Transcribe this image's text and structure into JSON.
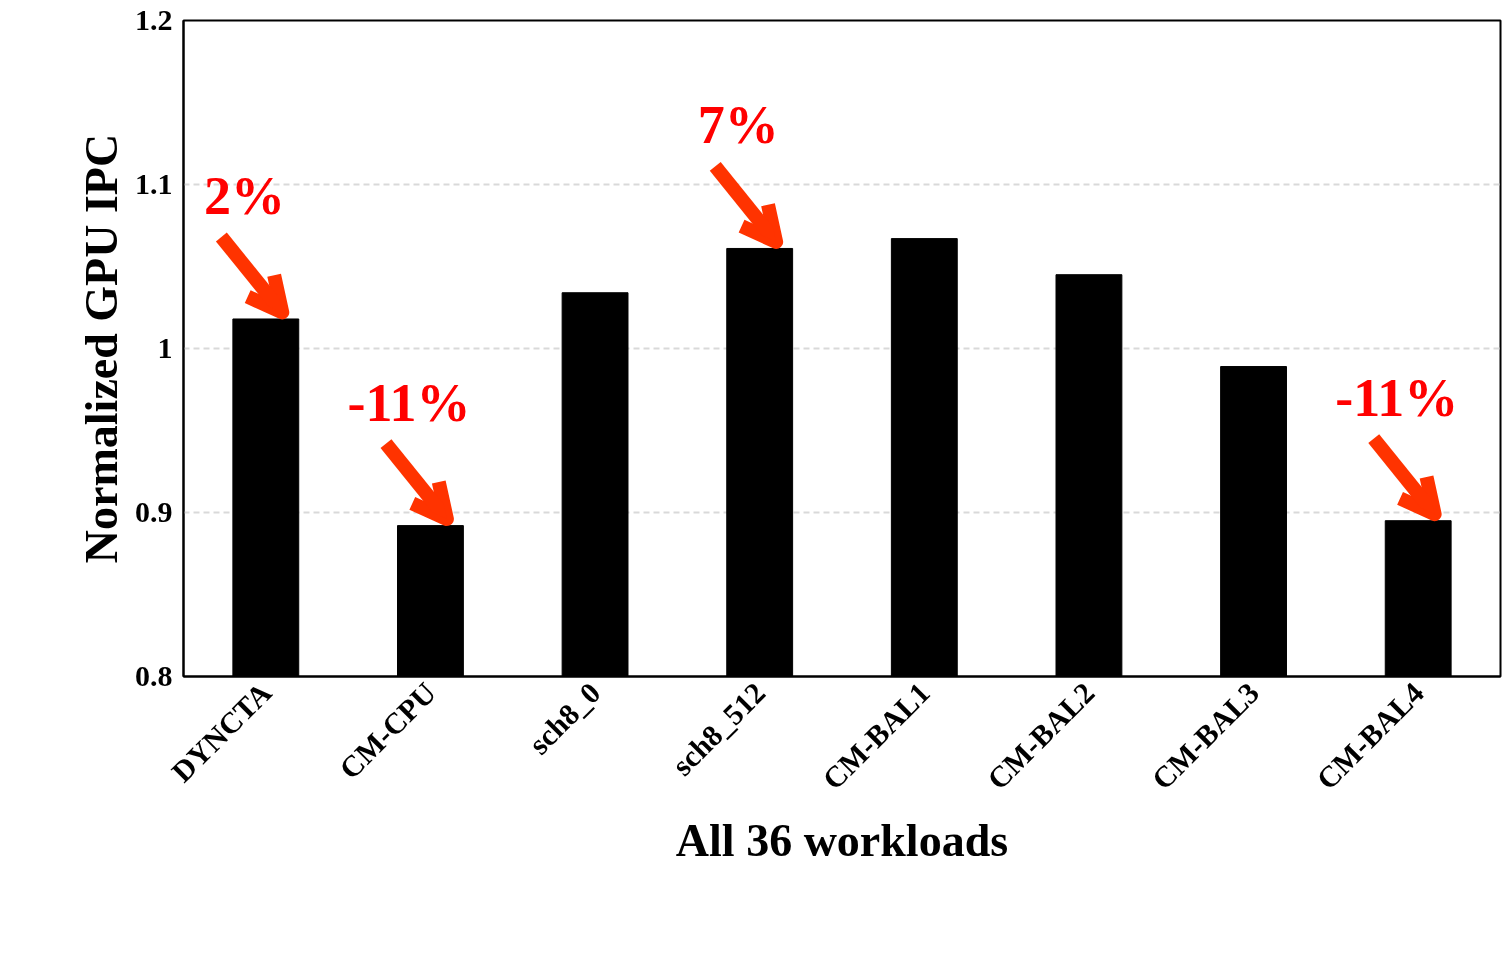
{
  "chart_data": {
    "type": "bar",
    "xlabel": "All 36 workloads",
    "ylabel": "Normalized GPU IPC",
    "categories": [
      "DYNCTA",
      "CM-CPU",
      "sch8_0",
      "sch8_512",
      "CM-BAL1",
      "CM-BAL2",
      "CM-BAL3",
      "CM-BAL4"
    ],
    "values": [
      1.018,
      0.892,
      1.034,
      1.061,
      1.067,
      1.045,
      0.989,
      0.895
    ],
    "color": "#000000",
    "ylim": [
      0.8,
      1.2
    ],
    "yticks": [
      0.8,
      0.9,
      1,
      1.1,
      1.2
    ],
    "grid": "y",
    "annotations": [
      {
        "text": "2%",
        "x": "DYNCTA",
        "y": 1.018
      },
      {
        "text": "-11%",
        "x": "CM-CPU",
        "y": 0.892
      },
      {
        "text": "7%",
        "x": "sch8_512",
        "y": 1.061
      },
      {
        "text": "-11%",
        "x": "CM-BAL4",
        "y": 0.895
      }
    ]
  }
}
